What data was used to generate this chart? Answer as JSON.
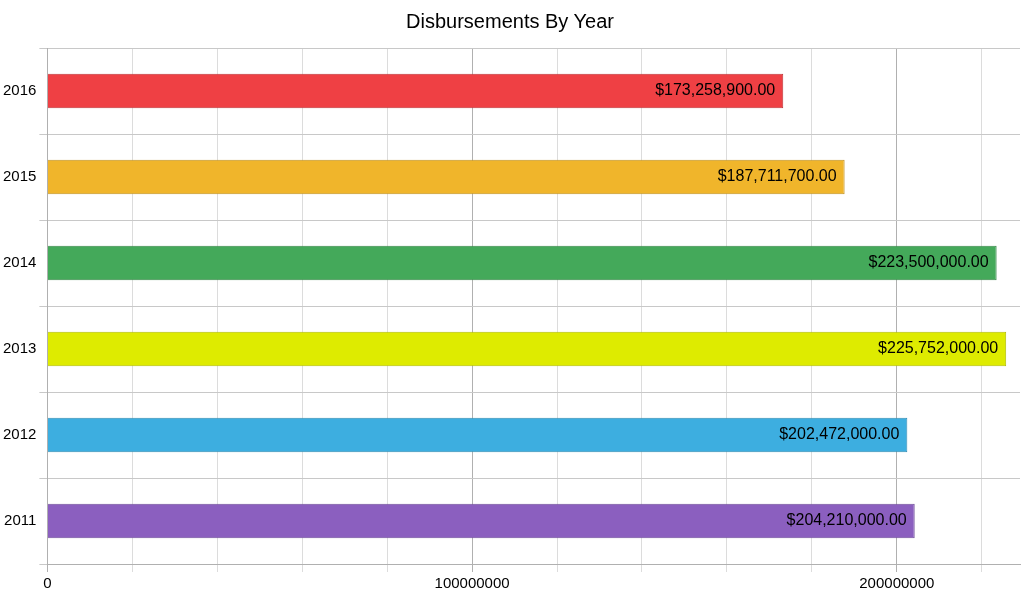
{
  "chart_data": {
    "type": "bar",
    "orientation": "horizontal",
    "title": "Disbursements By Year",
    "categories": [
      "2016",
      "2015",
      "2014",
      "2013",
      "2012",
      "2011"
    ],
    "values": [
      173258900,
      187711700,
      223500000,
      225752000,
      202472000,
      204210000
    ],
    "colors": [
      "#ef4044",
      "#f0b52b",
      "#44a95a",
      "#deeb00",
      "#3daee0",
      "#8b5fbf"
    ],
    "value_labels": [
      "$173,258,900.00",
      "$187,711,700.00",
      "$223,500,000.00",
      "$225,752,000.00",
      "$202,472,000.00",
      "$204,210,000.00"
    ],
    "xlim": [
      0,
      229000000
    ],
    "xticks": [
      0,
      {
        "value": 20000000,
        "label": null
      },
      {
        "value": 40000000,
        "label": null
      },
      {
        "value": 60000000,
        "label": null
      },
      {
        "value": 80000000,
        "label": null
      },
      100000000,
      {
        "value": 120000000,
        "label": null
      },
      {
        "value": 140000000,
        "label": null
      },
      {
        "value": 160000000,
        "label": null
      },
      {
        "value": 180000000,
        "label": null
      },
      200000000,
      {
        "value": 220000000,
        "label": null
      }
    ],
    "grid": true,
    "legend": false
  }
}
